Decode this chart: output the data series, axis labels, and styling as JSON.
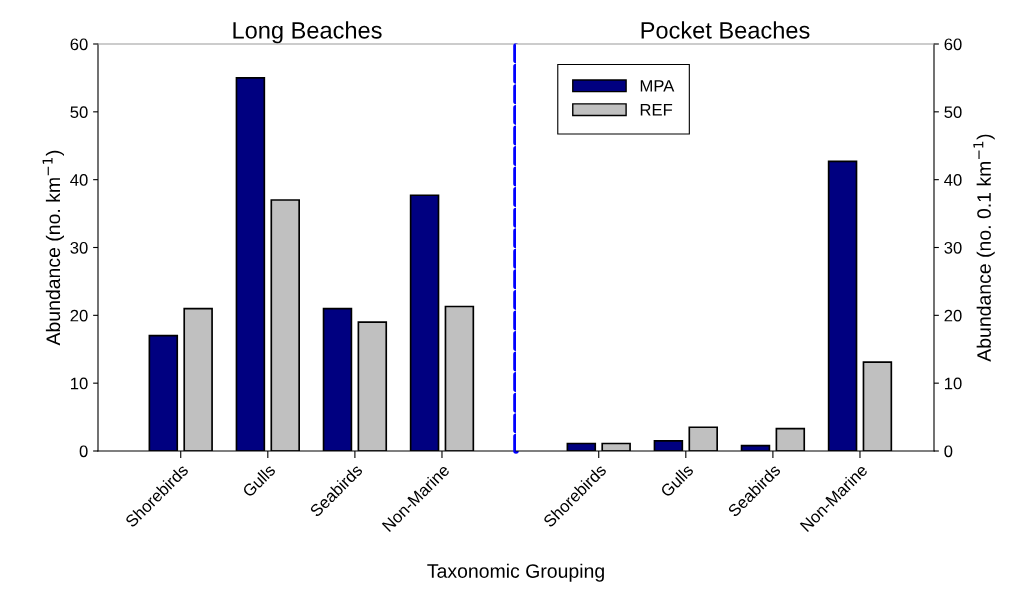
{
  "chart_data": [
    {
      "type": "bar",
      "title": "Long Beaches",
      "xlabel": "Taxonomic Grouping",
      "ylabel": "Abundance (no. km$^{−1}$)",
      "categories": [
        "Shorebirds",
        "Gulls",
        "Seabirds",
        "Non-Marine"
      ],
      "series": [
        {
          "color": "#000080",
          "values": [
            17,
            55,
            21,
            37.7
          ]
        },
        {
          "color": "#c0c0c0",
          "values": [
            21,
            37,
            19,
            21.3
          ]
        }
      ],
      "ylim": [
        0,
        60
      ],
      "yticks": [
        0,
        10,
        20,
        30,
        40,
        50,
        60
      ],
      "grid": false,
      "legend": false
    },
    {
      "type": "bar",
      "title": "Pocket Beaches",
      "y2label": "Abundance (no. 0.1 km$^{−1}$)",
      "categories": [
        "Shorebirds",
        "Gulls",
        "Seabirds",
        "Non-Marine"
      ],
      "series": [
        {
          "name": "MPA",
          "color": "#000080",
          "axis": "y2",
          "values": [
            1.1,
            1.5,
            0.8,
            42.7
          ]
        },
        {
          "name": "REF",
          "color": "#c0c0c0",
          "axis": "y2",
          "values": [
            1.1,
            3.5,
            3.3,
            13.1
          ]
        }
      ],
      "y2lim": [
        0,
        60
      ],
      "y2ticks": [
        0,
        10,
        20,
        30,
        40,
        50,
        60
      ],
      "grid": false,
      "legend": "top left"
    }
  ]
}
